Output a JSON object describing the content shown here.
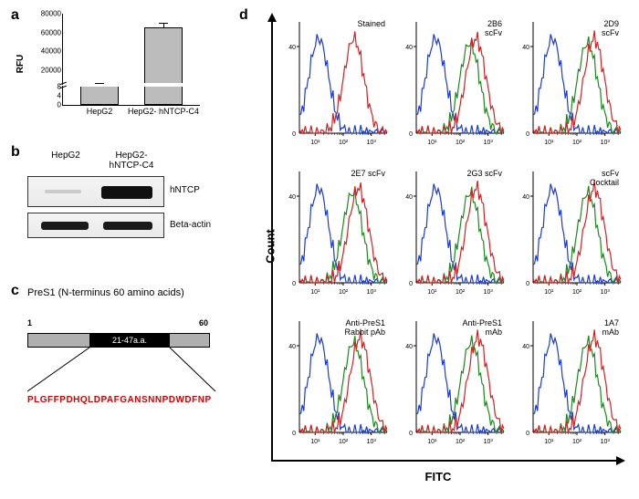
{
  "labels": {
    "a": "a",
    "b": "b",
    "c": "c",
    "d": "d"
  },
  "panel_a": {
    "ylabel": "RFU",
    "categories": [
      "HepG2",
      "HepG2- hNTCP-C4"
    ],
    "values": [
      400,
      65000
    ],
    "errors": [
      100,
      5000
    ],
    "bar_color": "#bcbcbc",
    "ymax": 80000,
    "break_low": 8,
    "break_high": 6000,
    "ticks_upper": [
      20000,
      40000,
      60000,
      80000
    ],
    "ticks_lower": [
      0,
      4,
      8
    ]
  },
  "panel_b": {
    "col_labels": [
      "HepG2",
      "HepG2-\nhNTCP-C4"
    ],
    "row_labels": [
      "hNTCP",
      "Beta-actin"
    ]
  },
  "panel_c": {
    "title": "PreS1 (N-terminus 60 amino acids)",
    "left_num": "1",
    "right_num": "60",
    "mid_label": "21-47a.a.",
    "sequence": "PLGFFPDHQLDPAFGANSNNPDWDFNP",
    "seq_color": "#d60000"
  },
  "panel_d": {
    "y_axis": "Count",
    "x_axis": "FITC",
    "blue": "#1a3bd6",
    "green": "#1a8a1a",
    "red": "#d62020",
    "x_ticks": [
      "10¹",
      "10²",
      "10³"
    ],
    "y_ticks": [
      "0",
      "40"
    ],
    "plots": [
      {
        "title": "Stained",
        "curves": [
          "blue",
          "red"
        ],
        "shift": 0
      },
      {
        "title": "2B6\nscFv",
        "curves": [
          "blue",
          "green",
          "red"
        ],
        "shift": 20
      },
      {
        "title": "2D9\nscFv",
        "curves": [
          "blue",
          "green",
          "red"
        ],
        "shift": 25
      },
      {
        "title": "2E7 scFv",
        "curves": [
          "blue",
          "green",
          "red"
        ],
        "shift": 18
      },
      {
        "title": "2G3 scFv",
        "curves": [
          "blue",
          "green",
          "red"
        ],
        "shift": 22
      },
      {
        "title": "scFv\nCocktail",
        "curves": [
          "blue",
          "green",
          "red"
        ],
        "shift": 26
      },
      {
        "title": "Anti-PreS1\nRabbit pAb",
        "curves": [
          "blue",
          "green",
          "red"
        ],
        "shift": 24
      },
      {
        "title": "Anti-PreS1\nmAb",
        "curves": [
          "blue",
          "green",
          "red"
        ],
        "shift": 28
      },
      {
        "title": "1A7\nmAb",
        "curves": [
          "blue",
          "green",
          "red"
        ],
        "shift": 26
      }
    ]
  }
}
